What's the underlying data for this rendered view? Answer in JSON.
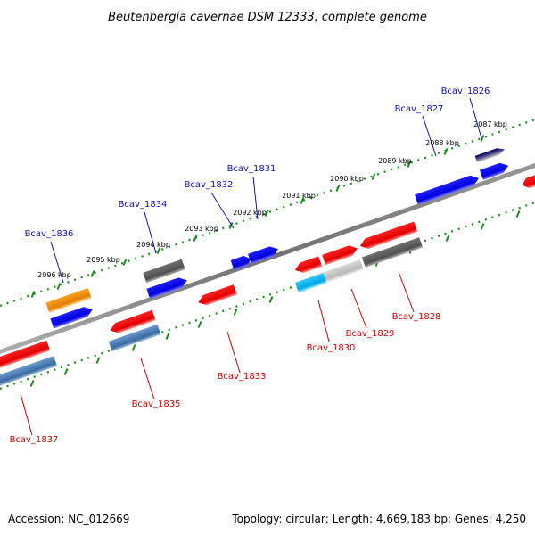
{
  "title": "Beutenbergia cavernae DSM 12333, complete genome",
  "footer": {
    "accession": "Accession: NC_012669",
    "topology": "Topology: circular; Length: 4,669,183 bp; Genes: 4,250"
  },
  "colors": {
    "backbone": "#888888",
    "ruler": "#1a8a1a",
    "label_top": "#1010b0",
    "label_bottom": "#cc0000"
  },
  "ticks": [
    {
      "label": "2087 kbp"
    },
    {
      "label": "2088 kbp"
    },
    {
      "label": "2089 kbp"
    },
    {
      "label": "2090 kbp"
    },
    {
      "label": "2091 kbp"
    },
    {
      "label": "2092 kbp"
    },
    {
      "label": "2093 kbp"
    },
    {
      "label": "2094 kbp"
    },
    {
      "label": "2095 kbp"
    },
    {
      "label": "2096 kbp"
    }
  ],
  "genes": [
    {
      "name": "Bcav_1826"
    },
    {
      "name": "Bcav_1827"
    },
    {
      "name": "Bcav_1828"
    },
    {
      "name": "Bcav_1829"
    },
    {
      "name": "Bcav_1830"
    },
    {
      "name": "Bcav_1831"
    },
    {
      "name": "Bcav_1832"
    },
    {
      "name": "Bcav_1833"
    },
    {
      "name": "Bcav_1834"
    },
    {
      "name": "Bcav_1835"
    },
    {
      "name": "Bcav_1836"
    },
    {
      "name": "Bcav_1837"
    }
  ]
}
